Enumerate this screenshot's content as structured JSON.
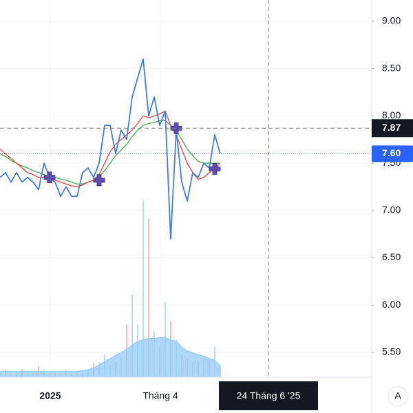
{
  "chart_data": {
    "type": "line",
    "categories": [
      null,
      null,
      null,
      null,
      null,
      null,
      null,
      null,
      null,
      "2025",
      null,
      null,
      null,
      null,
      null,
      null,
      null,
      null,
      null,
      null,
      null,
      null,
      null,
      null,
      null,
      null,
      null,
      null,
      null,
      "Tháng 4",
      null,
      null,
      null,
      null,
      null,
      null,
      null,
      null,
      null,
      null,
      null,
      null,
      null,
      null,
      null,
      null,
      null,
      null,
      null,
      "24 Tháng 6 '25",
      null,
      null,
      null,
      null,
      null,
      null,
      null,
      null,
      null,
      null,
      null,
      null,
      null,
      null,
      null,
      null,
      null,
      null
    ],
    "series": [
      {
        "color": "#3f7fd9",
        "values": [
          7.35,
          7.4,
          7.3,
          7.4,
          7.3,
          7.35,
          7.3,
          7.22,
          7.5,
          7.35,
          7.3,
          7.15,
          7.25,
          7.15,
          7.15,
          7.4,
          7.45,
          7.35,
          7.5,
          7.9,
          7.9,
          7.6,
          7.85,
          7.75,
          8.2,
          8.4,
          8.6,
          8.0,
          8.2,
          7.9,
          8.05,
          6.7,
          7.85,
          7.3,
          7.1,
          7.4,
          7.35,
          7.5,
          7.45,
          7.8,
          7.6,
          null,
          null,
          null,
          null,
          null,
          null,
          null,
          null,
          null,
          null,
          null,
          null,
          null,
          null,
          null,
          null,
          null,
          null,
          null,
          null,
          null,
          null,
          null,
          null,
          null,
          null,
          null
        ]
      },
      {
        "color": "#f04a4a",
        "values": [
          7.65,
          7.6,
          7.55,
          7.5,
          7.45,
          7.4,
          7.38,
          7.35,
          7.35,
          7.33,
          7.32,
          7.3,
          7.28,
          7.26,
          7.25,
          7.27,
          7.3,
          7.32,
          7.38,
          7.5,
          7.62,
          7.7,
          7.75,
          7.8,
          7.85,
          7.92,
          8.0,
          7.98,
          8.0,
          8.02,
          8.05,
          7.9,
          7.8,
          7.65,
          7.5,
          7.4,
          7.33,
          7.35,
          7.4,
          7.45,
          7.5,
          null,
          null,
          null,
          null,
          null,
          null,
          null,
          null,
          null,
          null,
          null,
          null,
          null,
          null,
          null,
          null,
          null,
          null,
          null,
          null,
          null,
          null,
          null,
          null,
          null,
          null,
          null
        ]
      },
      {
        "color": "#4caf50",
        "values": [
          7.6,
          7.57,
          7.53,
          7.5,
          7.47,
          7.45,
          7.42,
          7.4,
          7.38,
          7.36,
          7.35,
          7.33,
          7.32,
          7.3,
          7.28,
          7.28,
          7.3,
          7.32,
          7.36,
          7.42,
          7.5,
          7.58,
          7.64,
          7.7,
          7.78,
          7.85,
          7.9,
          7.92,
          7.93,
          7.95,
          7.95,
          7.9,
          7.85,
          7.75,
          7.65,
          7.58,
          7.52,
          7.5,
          7.5,
          7.5,
          7.5,
          null,
          null,
          null,
          null,
          null,
          null,
          null,
          null,
          null,
          null,
          null,
          null,
          null,
          null,
          null,
          null,
          null,
          null,
          null,
          null,
          null,
          null,
          null,
          null,
          null,
          null,
          null
        ]
      }
    ],
    "signals": {
      "color": "#5e4db2",
      "values": [
        null,
        null,
        null,
        null,
        null,
        null,
        null,
        null,
        null,
        7.35,
        null,
        null,
        null,
        null,
        null,
        null,
        null,
        null,
        7.32,
        null,
        null,
        null,
        null,
        null,
        null,
        null,
        null,
        null,
        null,
        null,
        null,
        null,
        7.87,
        null,
        null,
        null,
        null,
        null,
        null,
        7.44,
        null,
        null,
        null,
        null,
        null,
        null,
        null,
        null,
        null,
        null,
        null,
        null,
        null,
        null,
        null,
        null,
        null,
        null,
        null,
        null,
        null,
        null,
        null,
        null,
        null,
        null,
        null,
        null
      ]
    },
    "volume": {
      "axis": "y2",
      "up_color": "#9ed9cf",
      "down_color": "#f5a9a9",
      "values": [
        1,
        2,
        1,
        1,
        2,
        1,
        1,
        3,
        2,
        1,
        1,
        1,
        2,
        1,
        1,
        1,
        2,
        4,
        4,
        6,
        3,
        4,
        5,
        14,
        22,
        14,
        47,
        42,
        12,
        8,
        20,
        15,
        10,
        6,
        5,
        4,
        4,
        5,
        5,
        8,
        3,
        null,
        null,
        null,
        null,
        null,
        null,
        null,
        null,
        null,
        null,
        null,
        null,
        null,
        null,
        null,
        null,
        null,
        null,
        null,
        null,
        null,
        null,
        null,
        null,
        null,
        null,
        null
      ]
    },
    "volume_ma": {
      "axis": "y2",
      "color": "#90caf9",
      "values": [
        1.5,
        1.5,
        1.5,
        1.5,
        1.5,
        1.5,
        1.5,
        1.5,
        1.5,
        1.5,
        1.5,
        1.5,
        1.5,
        1.5,
        1.5,
        1.8,
        2,
        2.5,
        3.2,
        4.2,
        5,
        5.8,
        6.5,
        7.5,
        8.5,
        9.5,
        10,
        10.3,
        10.3,
        10.5,
        10.5,
        10,
        9.5,
        8,
        7,
        6.5,
        6,
        5.5,
        5,
        4.5,
        3,
        null,
        null,
        null,
        null,
        null,
        null,
        null,
        null,
        null,
        null,
        null,
        null,
        null,
        null,
        null,
        null,
        null,
        null,
        null,
        null,
        null,
        null,
        null,
        null,
        null,
        null,
        null
      ]
    },
    "ylim": [
      5.238,
      9.225
    ],
    "yticks": [
      {
        "value": 5.5,
        "label": "5.50"
      },
      {
        "value": 6,
        "label": "6.00"
      },
      {
        "value": 6.5,
        "label": "6.50"
      },
      {
        "value": 7,
        "label": "7.00"
      },
      {
        "value": 7.5,
        "label": "7.50"
      },
      {
        "value": 8,
        "label": "8.00"
      },
      {
        "value": 8.5,
        "label": "8.50"
      },
      {
        "value": 9,
        "label": "9.00"
      }
    ],
    "y2lim": [
      0,
      100
    ],
    "grid": true,
    "last_price": {
      "value": 7.6,
      "label": "7.60",
      "color": "#2962ff"
    },
    "crosshair": {
      "x": "24 Tháng 6 '25",
      "y": 7.87,
      "y_label": "7.87"
    },
    "scale_button": "A"
  }
}
